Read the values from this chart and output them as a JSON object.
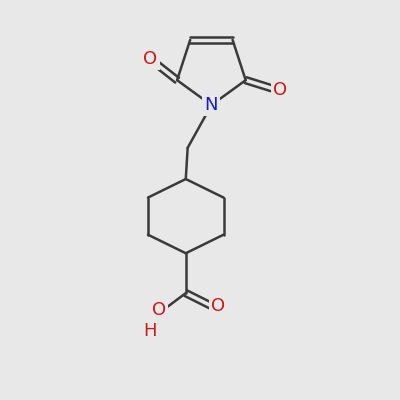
{
  "background_color": "#e8e8e8",
  "bond_color": "#3a3a3a",
  "bond_width": 1.8,
  "atom_colors": {
    "N": "#1a1acc",
    "O": "#cc1a1a",
    "H": "#cc1a1a"
  },
  "font_size_atom": 13,
  "figsize": [
    4.0,
    4.0
  ],
  "dpi": 100
}
